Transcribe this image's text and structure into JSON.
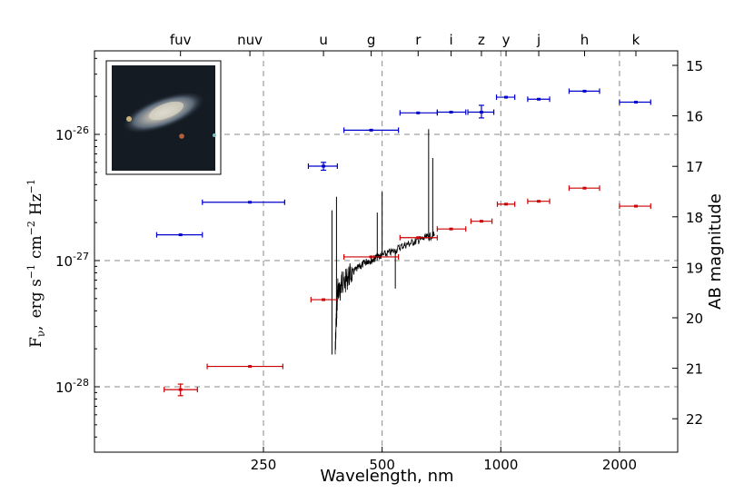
{
  "chart_data": {
    "type": "scatter",
    "xlabel": "Wavelength, nm",
    "xscale": "log",
    "xticks": [
      250,
      500,
      1000,
      2000
    ],
    "ylabel": {
      "base": "F",
      "sub": "ν",
      "comma": ",",
      "units": "erg s",
      "p1": "−1",
      "cm": "cm",
      "p2": "−2",
      "hz": "Hz",
      "p3": "−1"
    },
    "yscale": "log",
    "yticks": [
      {
        "base": "10",
        "exp": "-28"
      },
      {
        "base": "10",
        "exp": "-27"
      },
      {
        "base": "10",
        "exp": "-26"
      }
    ],
    "ylabel_right": "AB magnitude",
    "right_ticks": [
      "15",
      "16",
      "17",
      "18",
      "19",
      "20",
      "21",
      "22"
    ],
    "top_band_labels": [
      "fuv",
      "nuv",
      "u",
      "g",
      "r",
      "i",
      "z",
      "y",
      "j",
      "h",
      "k"
    ],
    "grid": "dashed horizontal at 1e-28, 1e-27, 1e-26; dashed vertical at 250, 500, 1000, 2000 nm",
    "series": [
      {
        "color": "#0000cc",
        "points": [
          {
            "band": "fuv",
            "x": 154,
            "xlo": 134,
            "xhi": 175,
            "y": 1.6e-27
          },
          {
            "band": "nuv",
            "x": 231,
            "xlo": 175,
            "xhi": 283,
            "y": 2.9e-27
          },
          {
            "band": "u",
            "x": 355,
            "xlo": 325,
            "xhi": 385,
            "y": 5.6e-27,
            "ylo": 5.2e-27,
            "yhi": 6e-27
          },
          {
            "band": "g",
            "x": 469,
            "xlo": 400,
            "xhi": 550,
            "y": 1.08e-26
          },
          {
            "band": "r",
            "x": 617,
            "xlo": 555,
            "xhi": 690,
            "y": 1.48e-26
          },
          {
            "band": "i",
            "x": 748,
            "xlo": 690,
            "xhi": 815,
            "y": 1.5e-26
          },
          {
            "band": "z",
            "x": 893,
            "xlo": 825,
            "xhi": 960,
            "y": 1.5e-26,
            "ylo": 1.35e-26,
            "yhi": 1.7e-26
          },
          {
            "band": "y",
            "x": 1031,
            "xlo": 975,
            "xhi": 1085,
            "y": 1.97e-26
          },
          {
            "band": "j",
            "x": 1248,
            "xlo": 1170,
            "xhi": 1330,
            "y": 1.9e-26
          },
          {
            "band": "h",
            "x": 1631,
            "xlo": 1490,
            "xhi": 1780,
            "y": 2.2e-26
          },
          {
            "band": "k",
            "x": 2201,
            "xlo": 2000,
            "xhi": 2400,
            "y": 1.8e-26
          }
        ]
      },
      {
        "color": "#cc0000",
        "points": [
          {
            "band": "fuv",
            "x": 154,
            "xlo": 140,
            "xhi": 170,
            "y": 9.5e-29,
            "ylo": 8.5e-29,
            "yhi": 1.05e-28
          },
          {
            "band": "nuv",
            "x": 231,
            "xlo": 180,
            "xhi": 280,
            "y": 1.45e-28
          },
          {
            "band": "u",
            "x": 355,
            "xlo": 330,
            "xhi": 385,
            "y": 4.9e-28
          },
          {
            "band": "g",
            "x": 469,
            "xlo": 400,
            "xhi": 550,
            "y": 1.07e-27
          },
          {
            "band": "r",
            "x": 617,
            "xlo": 555,
            "xhi": 690,
            "y": 1.52e-27
          },
          {
            "band": "i",
            "x": 748,
            "xlo": 690,
            "xhi": 815,
            "y": 1.78e-27
          },
          {
            "band": "z",
            "x": 893,
            "xlo": 840,
            "xhi": 950,
            "y": 2.05e-27
          },
          {
            "band": "y",
            "x": 1031,
            "xlo": 980,
            "xhi": 1085,
            "y": 2.8e-27
          },
          {
            "band": "j",
            "x": 1248,
            "xlo": 1170,
            "xhi": 1330,
            "y": 2.95e-27
          },
          {
            "band": "h",
            "x": 1631,
            "xlo": 1490,
            "xhi": 1780,
            "y": 3.75e-27
          },
          {
            "band": "k",
            "x": 2201,
            "xlo": 2000,
            "xhi": 2400,
            "y": 2.7e-27
          }
        ]
      },
      {
        "color": "#000000",
        "type": "line",
        "x": [
          380,
          382,
          384,
          386,
          390,
          395,
          400,
          410,
          420,
          430,
          440,
          450,
          460,
          470,
          480,
          490,
          500,
          520,
          540,
          560,
          580,
          600,
          620,
          640,
          660,
          680
        ],
        "y": [
          1.8e-28,
          3e-28,
          4.5e-28,
          6e-28,
          5.5e-28,
          7e-28,
          6.5e-28,
          7.5e-28,
          8e-28,
          8.5e-28,
          9e-28,
          9.5e-28,
          1e-27,
          1e-27,
          1.05e-27,
          1.08e-27,
          1.1e-27,
          1.15e-27,
          1.2e-27,
          1.3e-27,
          1.35e-27,
          1.4e-27,
          1.45e-27,
          1.5e-27,
          1.55e-27,
          1.6e-27
        ],
        "lines": [
          {
            "x": 383,
            "y": 3.2e-27
          },
          {
            "x": 373,
            "y": 2.5e-27
          },
          {
            "x": 486,
            "y": 2.4e-27
          },
          {
            "x": 500,
            "y": 3.5e-27
          },
          {
            "x": 540,
            "y": 6e-28
          },
          {
            "x": 656,
            "y": 1.1e-26
          },
          {
            "x": 672,
            "y": 6.5e-27
          }
        ]
      }
    ]
  }
}
